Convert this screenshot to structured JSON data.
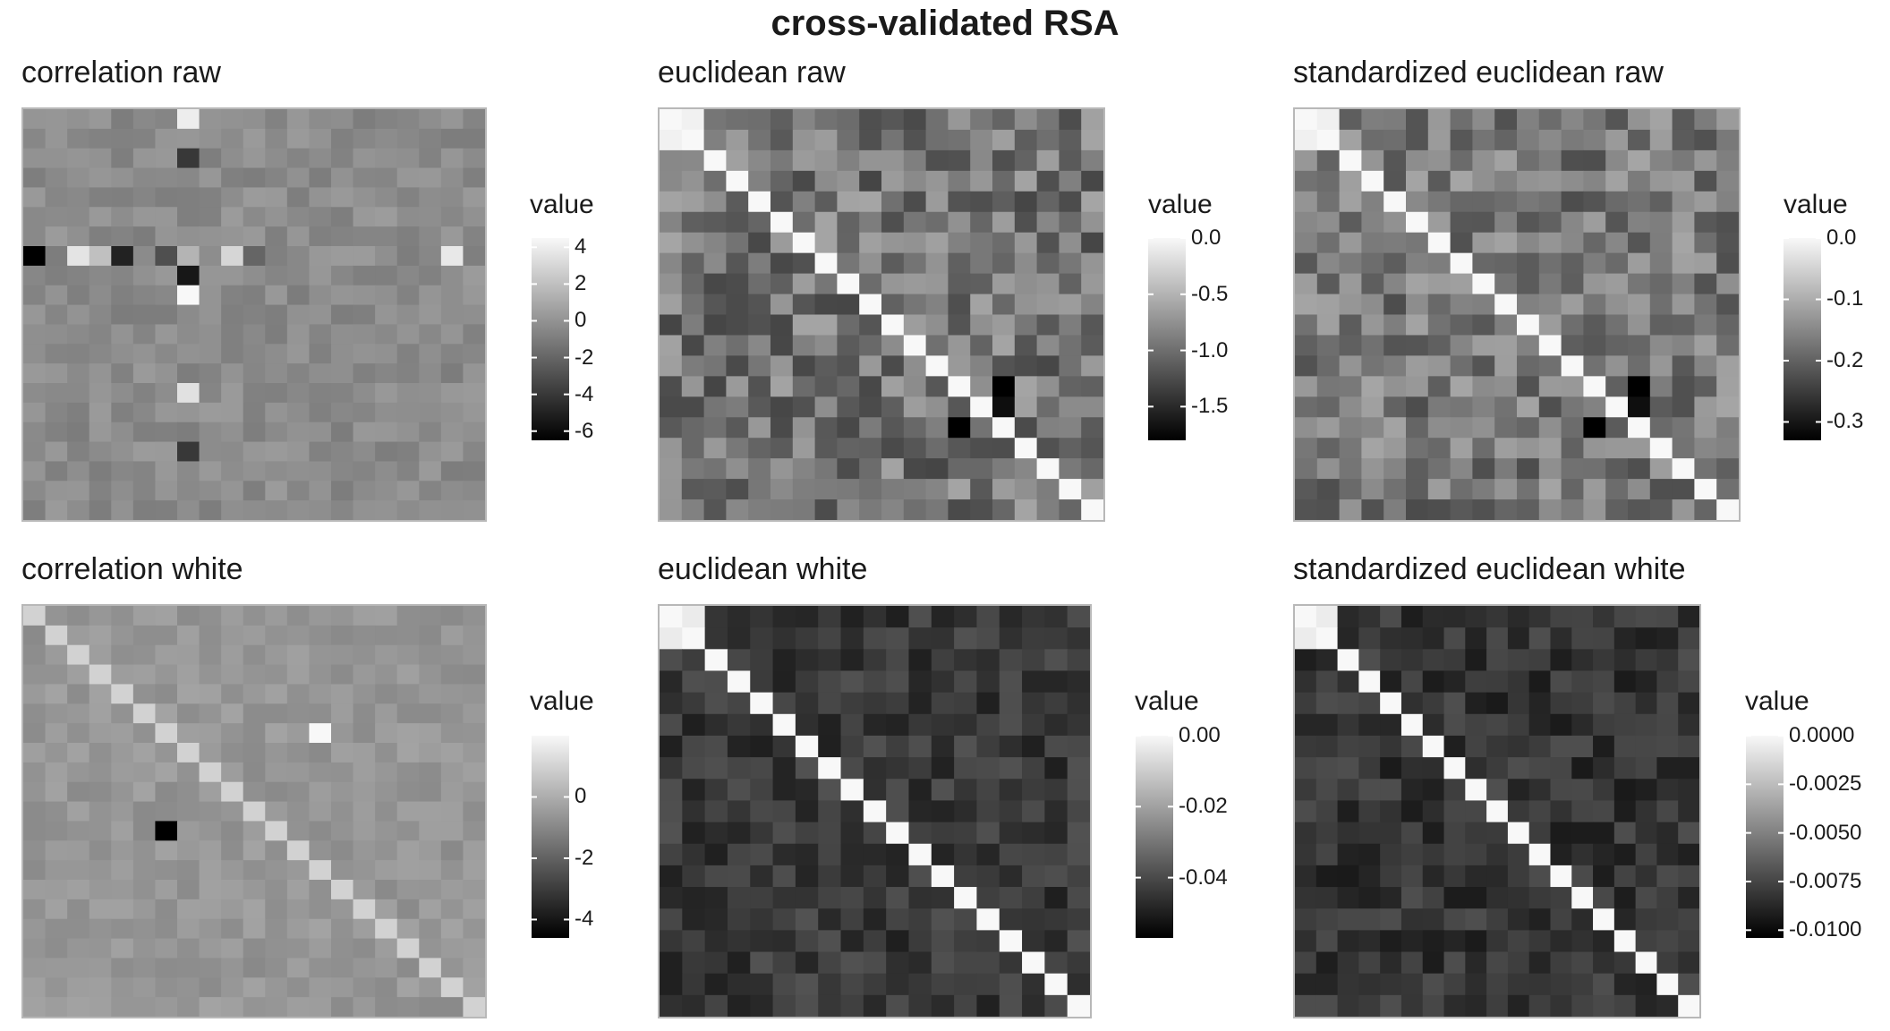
{
  "figure": {
    "title": "cross-validated RSA"
  },
  "chart_data": [
    {
      "type": "heatmap",
      "title": "correlation raw",
      "matrix_size": 21,
      "pattern": "flat",
      "base_value": -0.3,
      "noise": 0.7,
      "diagonal_value": null,
      "colorbar_range": [
        -6.5,
        4.5
      ],
      "legend": {
        "title": "value",
        "ticks": [
          4,
          2,
          0,
          -2,
          -4,
          -6
        ],
        "tick_labels": [
          "4",
          "2",
          "0",
          "-2",
          "-4",
          "-6"
        ]
      },
      "highlight_cells": [
        {
          "row": 0,
          "col": 7,
          "value": 4.0
        },
        {
          "row": 2,
          "col": 7,
          "value": -4.0
        },
        {
          "row": 7,
          "col": 0,
          "value": -6.5
        },
        {
          "row": 7,
          "col": 2,
          "value": 3.6
        },
        {
          "row": 7,
          "col": 3,
          "value": 2.0
        },
        {
          "row": 7,
          "col": 4,
          "value": -5.0
        },
        {
          "row": 7,
          "col": 6,
          "value": -3.0
        },
        {
          "row": 7,
          "col": 7,
          "value": 1.5
        },
        {
          "row": 7,
          "col": 9,
          "value": 3.0
        },
        {
          "row": 7,
          "col": 10,
          "value": -2.0
        },
        {
          "row": 7,
          "col": 19,
          "value": 3.8
        },
        {
          "row": 8,
          "col": 7,
          "value": -5.5
        },
        {
          "row": 9,
          "col": 7,
          "value": 4.5
        },
        {
          "row": 14,
          "col": 7,
          "value": 3.5
        },
        {
          "row": 17,
          "col": 7,
          "value": -4.0
        }
      ]
    },
    {
      "type": "heatmap",
      "title": "euclidean raw",
      "matrix_size": 20,
      "pattern": "diagonal",
      "base_value": -0.95,
      "noise": 0.35,
      "diagonal_value": 0.0,
      "colorbar_range": [
        -1.8,
        0.0
      ],
      "legend": {
        "title": "value",
        "ticks": [
          0.0,
          -0.5,
          -1.0,
          -1.5
        ],
        "tick_labels": [
          "0.0",
          "-0.5",
          "-1.0",
          "-1.5"
        ]
      },
      "highlight_cells": [
        {
          "row": 0,
          "col": 1,
          "value": -0.05
        },
        {
          "row": 1,
          "col": 0,
          "value": -0.05
        },
        {
          "row": 13,
          "col": 15,
          "value": -1.8
        },
        {
          "row": 15,
          "col": 13,
          "value": -1.8
        },
        {
          "row": 14,
          "col": 15,
          "value": -1.7
        }
      ]
    },
    {
      "type": "heatmap",
      "title": "standardized euclidean raw",
      "matrix_size": 20,
      "pattern": "diagonal",
      "base_value": -0.17,
      "noise": 0.06,
      "diagonal_value": 0.0,
      "colorbar_range": [
        -0.33,
        0.0
      ],
      "legend": {
        "title": "value",
        "ticks": [
          0.0,
          -0.1,
          -0.2,
          -0.3
        ],
        "tick_labels": [
          "0.0",
          "-0.1",
          "-0.2",
          "-0.3"
        ]
      },
      "highlight_cells": [
        {
          "row": 0,
          "col": 1,
          "value": -0.01
        },
        {
          "row": 1,
          "col": 0,
          "value": -0.01
        },
        {
          "row": 13,
          "col": 15,
          "value": -0.33
        },
        {
          "row": 15,
          "col": 13,
          "value": -0.33
        },
        {
          "row": 14,
          "col": 15,
          "value": -0.31
        }
      ]
    },
    {
      "type": "heatmap",
      "title": "correlation white",
      "matrix_size": 21,
      "pattern": "flat",
      "base_value": -0.6,
      "noise": 0.35,
      "diagonal_value": 1.0,
      "colorbar_range": [
        -4.6,
        2.0
      ],
      "legend": {
        "title": "value",
        "ticks": [
          0,
          -2,
          -4
        ],
        "tick_labels": [
          "0",
          "-2",
          "-4"
        ]
      },
      "highlight_cells": [
        {
          "row": 6,
          "col": 13,
          "value": 2.0
        },
        {
          "row": 11,
          "col": 6,
          "value": -4.6
        }
      ]
    },
    {
      "type": "heatmap",
      "title": "euclidean white",
      "matrix_size": 19,
      "pattern": "diagonal",
      "base_value": -0.044,
      "noise": 0.006,
      "diagonal_value": 0.0,
      "colorbar_range": [
        -0.057,
        0.0
      ],
      "legend": {
        "title": "value",
        "ticks": [
          0.0,
          -0.02,
          -0.04
        ],
        "tick_labels": [
          "0.00",
          "-0.02",
          "-0.04"
        ]
      },
      "highlight_cells": [
        {
          "row": 0,
          "col": 1,
          "value": -0.003
        },
        {
          "row": 1,
          "col": 0,
          "value": -0.003
        }
      ]
    },
    {
      "type": "heatmap",
      "title": "standardized euclidean white",
      "matrix_size": 19,
      "pattern": "diagonal",
      "base_value": -0.0082,
      "noise": 0.0011,
      "diagonal_value": 0.0,
      "colorbar_range": [
        -0.0104,
        0.0
      ],
      "legend": {
        "title": "value",
        "ticks": [
          0.0,
          -0.0025,
          -0.005,
          -0.0075,
          -0.01
        ],
        "tick_labels": [
          "0.0000",
          "-0.0025",
          "-0.0050",
          "-0.0075",
          "-0.0100"
        ]
      },
      "highlight_cells": [
        {
          "row": 0,
          "col": 1,
          "value": -0.0005
        },
        {
          "row": 1,
          "col": 0,
          "value": -0.0005
        }
      ]
    }
  ]
}
